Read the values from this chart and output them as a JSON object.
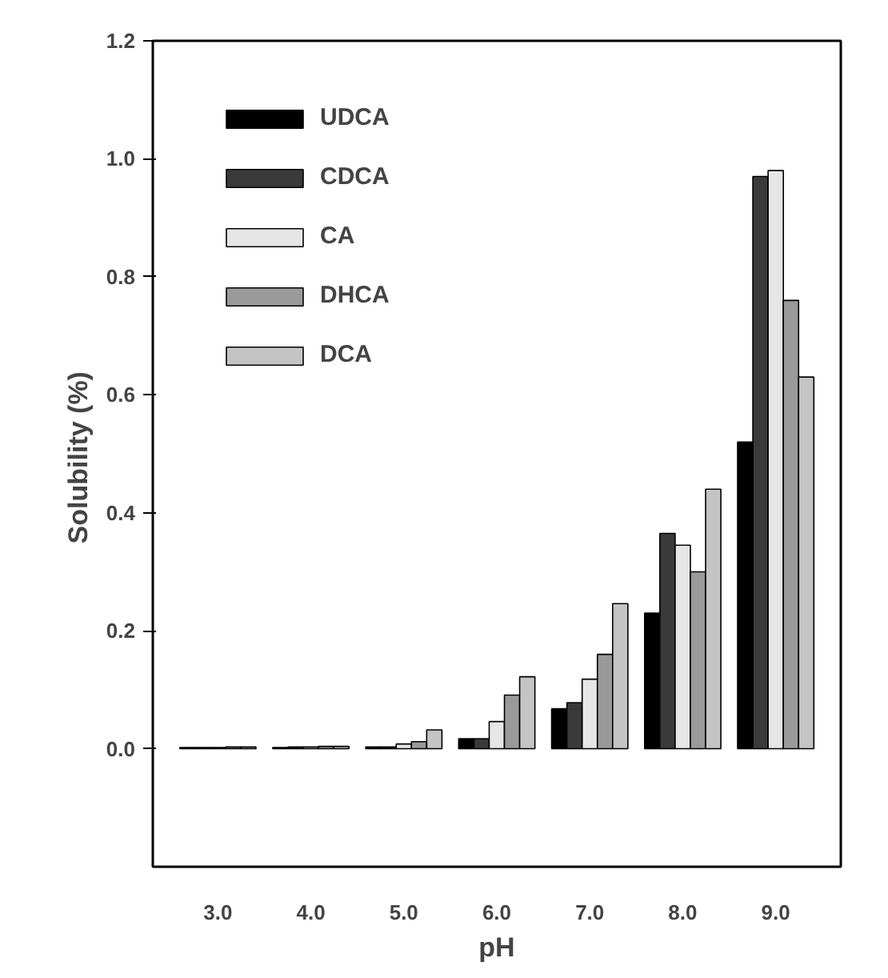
{
  "chart_data": {
    "type": "bar",
    "xlabel": "pH",
    "ylabel": "Solubility  (%)",
    "categories": [
      "3.0",
      "4.0",
      "5.0",
      "6.0",
      "7.0",
      "8.0",
      "9.0"
    ],
    "series": [
      {
        "name": "UDCA",
        "color": "#000000",
        "values": [
          0.002,
          0.002,
          0.003,
          0.017,
          0.068,
          0.23,
          0.52
        ]
      },
      {
        "name": "CDCA",
        "color": "#3a3a3a",
        "values": [
          0.002,
          0.003,
          0.003,
          0.017,
          0.078,
          0.365,
          0.97
        ]
      },
      {
        "name": "CA",
        "color": "#e6e6e6",
        "values": [
          0.002,
          0.003,
          0.008,
          0.046,
          0.118,
          0.345,
          0.98
        ]
      },
      {
        "name": "DHCA",
        "color": "#9a9a9a",
        "values": [
          0.003,
          0.004,
          0.012,
          0.091,
          0.16,
          0.3,
          0.76
        ]
      },
      {
        "name": "DCA",
        "color": "#c4c4c4",
        "values": [
          0.003,
          0.004,
          0.032,
          0.122,
          0.246,
          0.44,
          0.63
        ]
      }
    ],
    "ylim": [
      -0.2,
      1.2
    ],
    "yticks": [
      {
        "value": 0,
        "label": "0.0"
      },
      {
        "value": 0.2,
        "label": "0.2"
      },
      {
        "value": 0.4,
        "label": "0.4"
      },
      {
        "value": 0.6,
        "label": "0.6"
      },
      {
        "value": 0.8,
        "label": "0.8"
      },
      {
        "value": 1.0,
        "label": "1.0"
      },
      {
        "value": 1.2,
        "label": "1.2"
      }
    ],
    "grid": false,
    "legend": "top left"
  }
}
